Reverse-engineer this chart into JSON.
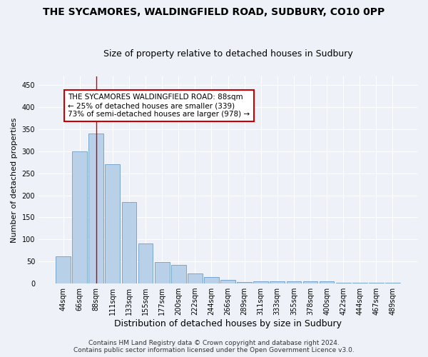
{
  "title": "THE SYCAMORES, WALDINGFIELD ROAD, SUDBURY, CO10 0PP",
  "subtitle": "Size of property relative to detached houses in Sudbury",
  "xlabel": "Distribution of detached houses by size in Sudbury",
  "ylabel": "Number of detached properties",
  "categories": [
    "44sqm",
    "66sqm",
    "88sqm",
    "111sqm",
    "133sqm",
    "155sqm",
    "177sqm",
    "200sqm",
    "222sqm",
    "244sqm",
    "266sqm",
    "289sqm",
    "311sqm",
    "333sqm",
    "355sqm",
    "378sqm",
    "400sqm",
    "422sqm",
    "444sqm",
    "467sqm",
    "489sqm"
  ],
  "values": [
    62,
    300,
    340,
    270,
    185,
    90,
    48,
    42,
    22,
    14,
    8,
    4,
    5,
    5,
    5,
    5,
    5,
    1,
    1,
    1,
    1
  ],
  "bar_color": "#b8d0e8",
  "bar_edge_color": "#5a8fc0",
  "highlight_bar_index": 2,
  "highlight_line_color": "#cc0000",
  "annotation_text": "THE SYCAMORES WALDINGFIELD ROAD: 88sqm\n← 25% of detached houses are smaller (339)\n73% of semi-detached houses are larger (978) →",
  "annotation_box_color": "white",
  "annotation_box_edge_color": "#cc0000",
  "ylim": [
    0,
    470
  ],
  "yticks": [
    0,
    50,
    100,
    150,
    200,
    250,
    300,
    350,
    400,
    450
  ],
  "footer_line1": "Contains HM Land Registry data © Crown copyright and database right 2024.",
  "footer_line2": "Contains public sector information licensed under the Open Government Licence v3.0.",
  "background_color": "#eef2f8",
  "grid_color": "#ffffff",
  "title_fontsize": 10,
  "subtitle_fontsize": 9,
  "xlabel_fontsize": 9,
  "ylabel_fontsize": 8,
  "tick_fontsize": 7,
  "annotation_fontsize": 7.5,
  "footer_fontsize": 6.5
}
